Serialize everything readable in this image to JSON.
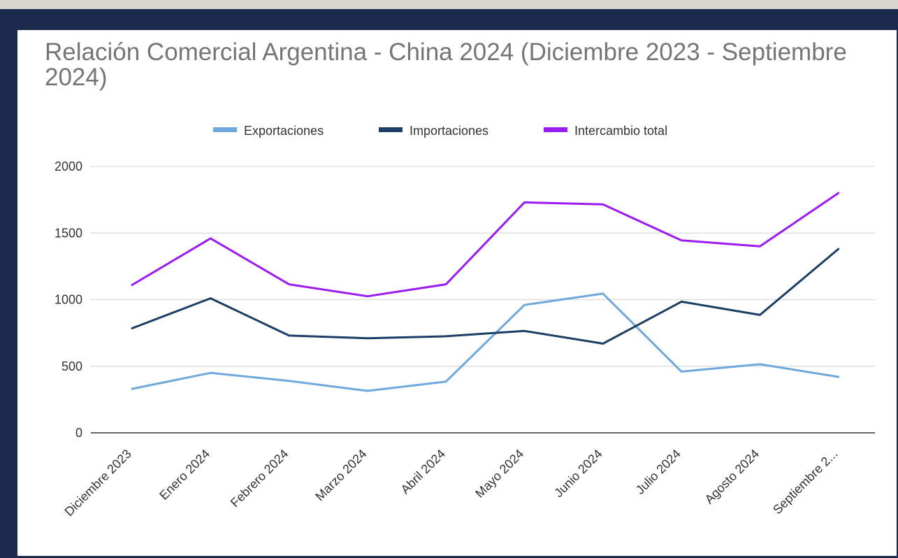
{
  "chart_data": {
    "type": "line",
    "title": "Relación Comercial Argentina - China 2024 (Diciembre 2023 - Septiembre 2024)",
    "xlabel": "",
    "ylabel": "",
    "categories": [
      "Diciembre 2023",
      "Enero 2024",
      "Febrero 2024",
      "Marzo 2024",
      "Abril 2024",
      "Mayo 2024",
      "Junio 2024",
      "Julio 2024",
      "Agosto 2024",
      "Septiembre 2..."
    ],
    "series": [
      {
        "name": "Exportaciones",
        "color": "#6fa8dc",
        "values": [
          330,
          450,
          390,
          315,
          385,
          960,
          1045,
          460,
          515,
          420
        ]
      },
      {
        "name": "Importaciones",
        "color": "#1c3d66",
        "values": [
          785,
          1010,
          730,
          710,
          725,
          765,
          670,
          985,
          885,
          1380
        ]
      },
      {
        "name": "Intercambio total",
        "color": "#9b1bf0",
        "values": [
          1110,
          1460,
          1115,
          1025,
          1115,
          1730,
          1715,
          1445,
          1400,
          1800
        ]
      }
    ],
    "ylim": [
      0,
      2000
    ],
    "yticks": [
      0,
      500,
      1000,
      1500,
      2000
    ],
    "grid": true,
    "legend": "top-center"
  }
}
